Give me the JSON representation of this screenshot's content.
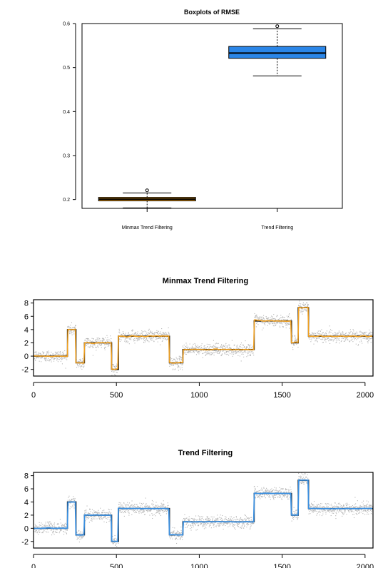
{
  "chart_data": [
    {
      "type": "boxplot",
      "title": "Boxplots of RMSE",
      "xlabel": "",
      "ylabel": "",
      "ylim": [
        0.18,
        0.6
      ],
      "yticks": [
        "0.2",
        "0.3",
        "0.4",
        "0.5",
        "0.6"
      ],
      "ytick_values": [
        0.2,
        0.3,
        0.4,
        0.5,
        0.6
      ],
      "categories": [
        "Minmax Trend Filtering",
        "Trend Filtering"
      ],
      "boxes": [
        {
          "category": "Minmax Trend Filtering",
          "color": "#d88c0f",
          "min": 0.181,
          "q1": 0.197,
          "median": 0.201,
          "q3": 0.205,
          "max": 0.215,
          "outliers": [
            0.221
          ]
        },
        {
          "category": "Trend Filtering",
          "color": "#2b86e8",
          "min": 0.481,
          "q1": 0.521,
          "median": 0.533,
          "q3": 0.548,
          "max": 0.588,
          "outliers": [
            0.594
          ]
        }
      ],
      "grid": false
    },
    {
      "type": "scatter",
      "title": "Minmax Trend Filtering",
      "xlabel": "",
      "ylabel": "",
      "xlim": [
        0,
        2048
      ],
      "ylim": [
        -3,
        8.5
      ],
      "xticks": [
        "0",
        "500",
        "1000",
        "1500",
        "2000"
      ],
      "xtick_values": [
        0,
        500,
        1000,
        1500,
        2000
      ],
      "yticks": [
        "-2",
        "0",
        "2",
        "4",
        "6",
        "8"
      ],
      "ytick_values": [
        -2,
        0,
        2,
        4,
        6,
        8
      ],
      "noise_sd": 0.45,
      "point_count": 2048,
      "true_signal": [
        [
          0,
          0
        ],
        [
          205,
          4
        ],
        [
          256,
          -1
        ],
        [
          307,
          2
        ],
        [
          471,
          -2
        ],
        [
          512,
          3
        ],
        [
          820,
          -1
        ],
        [
          901,
          1
        ],
        [
          1331,
          5.3
        ],
        [
          1556,
          2
        ],
        [
          1597,
          7.3
        ],
        [
          1659,
          3
        ],
        [
          2048,
          3
        ]
      ],
      "series": [
        {
          "name": "data",
          "color": "#b5b5b5",
          "kind": "points"
        },
        {
          "name": "truth",
          "color": "#000000",
          "kind": "step"
        },
        {
          "name": "fit",
          "color": "#f0a020",
          "kind": "line"
        }
      ],
      "grid": false
    },
    {
      "type": "scatter",
      "title": "Trend Filtering",
      "xlabel": "",
      "ylabel": "",
      "xlim": [
        0,
        2048
      ],
      "ylim": [
        -3,
        8.5
      ],
      "xticks": [
        "0",
        "500",
        "1000",
        "1500",
        "2000"
      ],
      "xtick_values": [
        0,
        500,
        1000,
        1500,
        2000
      ],
      "yticks": [
        "-2",
        "0",
        "2",
        "4",
        "6",
        "8"
      ],
      "ytick_values": [
        -2,
        0,
        2,
        4,
        6,
        8
      ],
      "noise_sd": 0.45,
      "point_count": 2048,
      "true_signal": [
        [
          0,
          0
        ],
        [
          205,
          4
        ],
        [
          256,
          -1
        ],
        [
          307,
          2
        ],
        [
          471,
          -2
        ],
        [
          512,
          3
        ],
        [
          820,
          -1
        ],
        [
          901,
          1
        ],
        [
          1331,
          5.3
        ],
        [
          1556,
          2
        ],
        [
          1597,
          7.3
        ],
        [
          1659,
          3
        ],
        [
          2048,
          3
        ]
      ],
      "series": [
        {
          "name": "data",
          "color": "#b5b5b5",
          "kind": "points"
        },
        {
          "name": "truth",
          "color": "#000000",
          "kind": "step"
        },
        {
          "name": "fit",
          "color": "#3a8fe0",
          "kind": "line"
        }
      ],
      "grid": false
    }
  ]
}
